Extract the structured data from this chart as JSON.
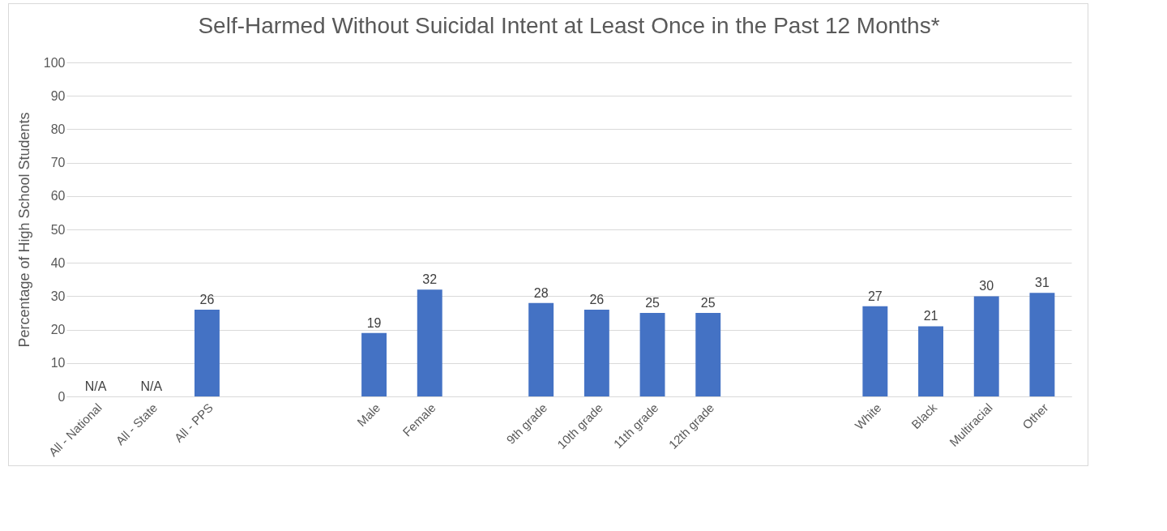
{
  "chart_data": {
    "type": "bar",
    "title": "Self-Harmed Without Suicidal Intent at Least Once in the Past 12 Months*",
    "ylabel": "Percentage of High School Students",
    "categories": [
      "All - National",
      "All - State",
      "All - PPS",
      null,
      null,
      "Male",
      "Female",
      null,
      "9th grade",
      "10th grade",
      "11th grade",
      "12th grade",
      null,
      null,
      "White",
      "Black",
      "Multiracial",
      "Other"
    ],
    "values": [
      null,
      null,
      26,
      null,
      null,
      19,
      32,
      null,
      28,
      26,
      25,
      25,
      null,
      null,
      27,
      21,
      30,
      31
    ],
    "value_labels": [
      "N/A",
      "N/A",
      "26",
      null,
      null,
      "19",
      "32",
      null,
      "28",
      "26",
      "25",
      "25",
      null,
      null,
      "27",
      "21",
      "30",
      "31"
    ],
    "color": "#4472c4",
    "ylim": [
      0,
      100
    ],
    "yticks": [
      0,
      10,
      20,
      30,
      40,
      50,
      60,
      70,
      80,
      90,
      100
    ],
    "grid": "y"
  }
}
